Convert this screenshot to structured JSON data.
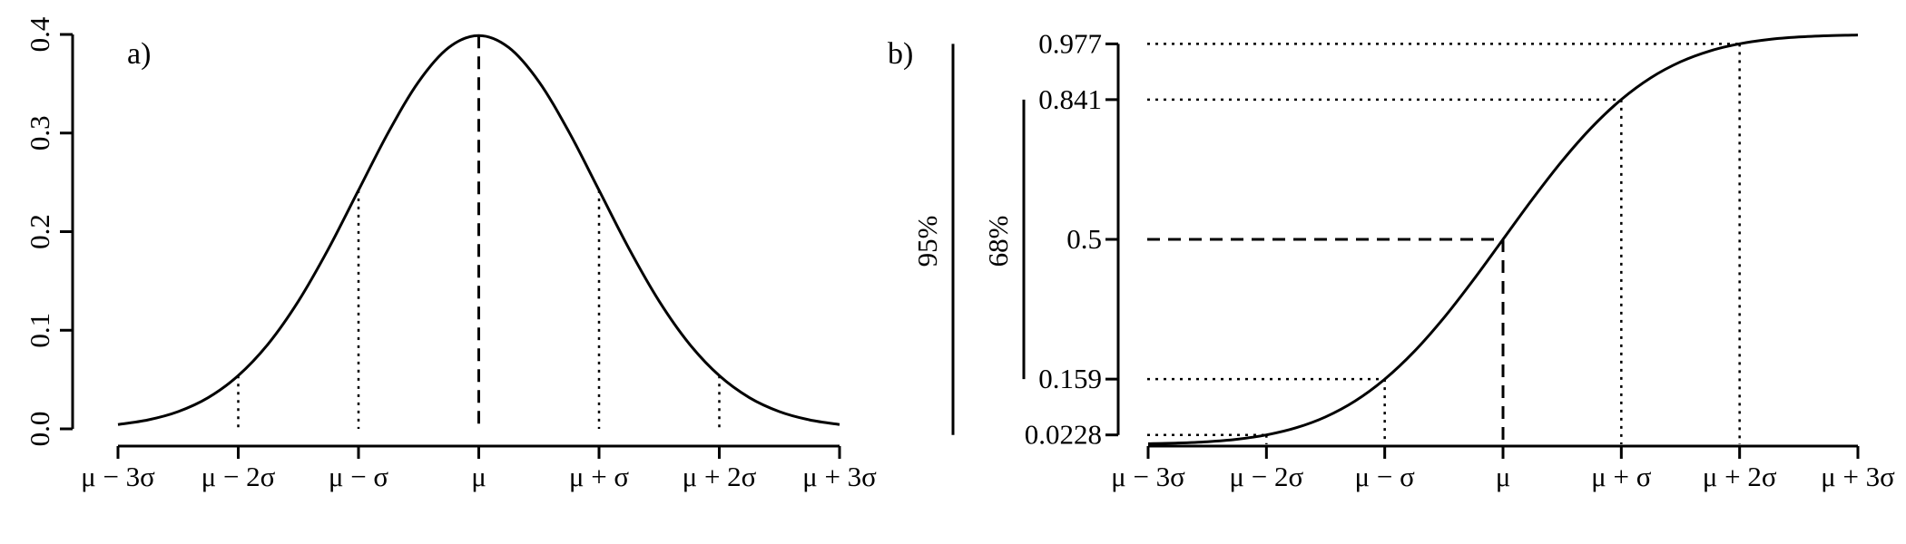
{
  "chart_data": [
    {
      "panel": "a)",
      "type": "line",
      "series": [
        {
          "x": [
            -3.0,
            -2.75,
            -2.5,
            -2.25,
            -2.0,
            -1.75,
            -1.5,
            -1.25,
            -1.0,
            -0.75,
            -0.5,
            -0.25,
            0.0,
            0.25,
            0.5,
            0.75,
            1.0,
            1.25,
            1.5,
            1.75,
            2.0,
            2.25,
            2.5,
            2.75,
            3.0
          ],
          "y": [
            0.0044,
            0.0091,
            0.0175,
            0.0317,
            0.054,
            0.0863,
            0.1295,
            0.1826,
            0.242,
            0.3011,
            0.3521,
            0.3867,
            0.3989,
            0.3867,
            0.3521,
            0.3011,
            0.242,
            0.1826,
            0.1295,
            0.0863,
            0.054,
            0.0317,
            0.0175,
            0.0091,
            0.0044
          ]
        }
      ],
      "xticks": [
        -3,
        -2,
        -1,
        0,
        1,
        2,
        3
      ],
      "xtick_labels": [
        "μ − 3σ",
        "μ − 2σ",
        "μ − σ",
        "μ",
        "μ + σ",
        "μ + 2σ",
        "μ + 3σ"
      ],
      "yticks": [
        0.0,
        0.1,
        0.2,
        0.3,
        0.4
      ],
      "ytick_labels": [
        "0.0",
        "0.1",
        "0.2",
        "0.3",
        "0.4"
      ],
      "xlim": [
        -3,
        3
      ],
      "ylim": [
        0,
        0.4
      ],
      "reference_lines": [
        {
          "x": -2,
          "y": 0.054,
          "style": "dotted"
        },
        {
          "x": -1,
          "y": 0.242,
          "style": "dotted"
        },
        {
          "x": 0,
          "y": 0.3989,
          "style": "dashed"
        },
        {
          "x": 1,
          "y": 0.242,
          "style": "dotted"
        },
        {
          "x": 2,
          "y": 0.054,
          "style": "dotted"
        }
      ],
      "grid": false
    },
    {
      "panel": "b)",
      "type": "line",
      "series": [
        {
          "x": [
            -3.0,
            -2.75,
            -2.5,
            -2.25,
            -2.0,
            -1.75,
            -1.5,
            -1.25,
            -1.0,
            -0.75,
            -0.5,
            -0.25,
            0.0,
            0.25,
            0.5,
            0.75,
            1.0,
            1.25,
            1.5,
            1.75,
            2.0,
            2.25,
            2.5,
            2.75,
            3.0
          ],
          "y": [
            0.0013,
            0.003,
            0.0062,
            0.0122,
            0.0228,
            0.0401,
            0.0668,
            0.1056,
            0.1587,
            0.2266,
            0.3085,
            0.4013,
            0.5,
            0.5987,
            0.6915,
            0.7734,
            0.8413,
            0.8944,
            0.9332,
            0.9599,
            0.9772,
            0.9878,
            0.9938,
            0.997,
            0.9987
          ]
        }
      ],
      "xticks": [
        -3,
        -2,
        -1,
        0,
        1,
        2,
        3
      ],
      "xtick_labels": [
        "μ − 3σ",
        "μ − 2σ",
        "μ − σ",
        "μ",
        "μ + σ",
        "μ + 2σ",
        "μ + 3σ"
      ],
      "yticks": [
        0.0228,
        0.159,
        0.5,
        0.841,
        0.977
      ],
      "ytick_labels": [
        "0.0228",
        "0.159",
        "0.5",
        "0.841",
        "0.977"
      ],
      "xlim": [
        -3,
        3
      ],
      "ylim": [
        0,
        1
      ],
      "reference_lines": [
        {
          "x": -2,
          "y": 0.0228,
          "style": "dotted"
        },
        {
          "x": -1,
          "y": 0.159,
          "style": "dotted"
        },
        {
          "x": 0,
          "y": 0.5,
          "style": "dashed"
        },
        {
          "x": 1,
          "y": 0.841,
          "style": "dotted"
        },
        {
          "x": 2,
          "y": 0.977,
          "style": "dotted"
        }
      ],
      "brackets": [
        {
          "label": "95%",
          "from": 0.0228,
          "to": 0.977
        },
        {
          "label": "68%",
          "from": 0.159,
          "to": 0.841
        }
      ],
      "grid": false
    }
  ]
}
